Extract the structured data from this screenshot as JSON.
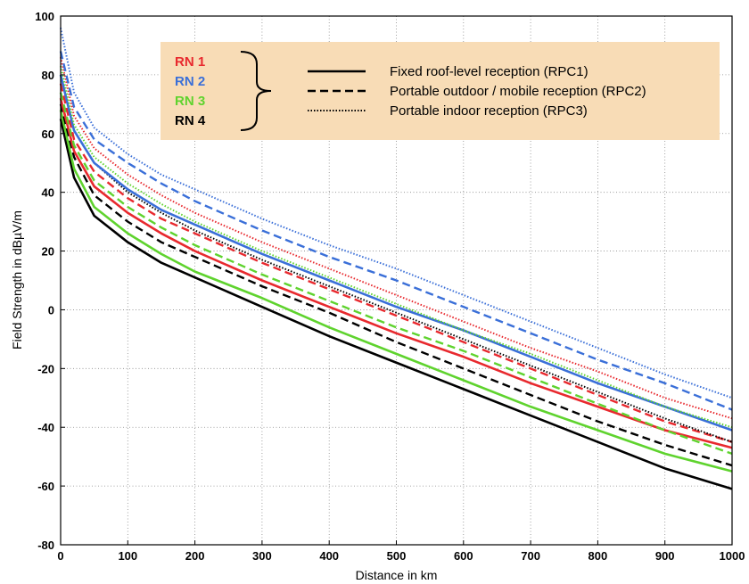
{
  "chart_data": {
    "type": "line",
    "xlabel": "Distance in km",
    "ylabel": "Field Strength in dBµV/m",
    "xlim": [
      0,
      1000
    ],
    "ylim": [
      -80,
      100
    ],
    "xticks": [
      0,
      100,
      200,
      300,
      400,
      500,
      600,
      700,
      800,
      900,
      1000
    ],
    "yticks": [
      -80,
      -60,
      -40,
      -20,
      0,
      20,
      40,
      60,
      80,
      100
    ],
    "grid": true,
    "legend": {
      "placement": "top-center",
      "background": "#f8dcb6",
      "networks": [
        {
          "label": "RN 1",
          "color": "#e8292e"
        },
        {
          "label": "RN 2",
          "color": "#3a6fd8"
        },
        {
          "label": "RN 3",
          "color": "#5fd32e"
        },
        {
          "label": "RN 4",
          "color": "#000000"
        }
      ],
      "styles": [
        {
          "label": "Fixed roof-level reception (RPC1)",
          "dash": "solid"
        },
        {
          "label": "Portable outdoor / mobile reception (RPC2)",
          "dash": "dashed"
        },
        {
          "label": "Portable indoor reception (RPC3)",
          "dash": "dotted"
        }
      ]
    },
    "x": [
      0,
      20,
      50,
      100,
      150,
      200,
      300,
      400,
      500,
      600,
      700,
      800,
      900,
      1000
    ],
    "series": [
      {
        "name": "RN 4 RPC1",
        "network": "RN 4",
        "style": "solid",
        "values": [
          65,
          45,
          32,
          23,
          16,
          11,
          1,
          -9,
          -18,
          -27,
          -36,
          -45,
          -54,
          -61
        ]
      },
      {
        "name": "RN 3 RPC1",
        "network": "RN 3",
        "style": "solid",
        "values": [
          68,
          48,
          35,
          26,
          19,
          13,
          4,
          -6,
          -15,
          -24,
          -33,
          -41,
          -49,
          -55
        ]
      },
      {
        "name": "RN 4 RPC2",
        "network": "RN 4",
        "style": "dashed",
        "values": [
          70,
          52,
          39,
          30,
          23,
          18,
          8,
          -1,
          -11,
          -20,
          -29,
          -38,
          -46,
          -53
        ]
      },
      {
        "name": "RN 1 RPC1",
        "network": "RN 1",
        "style": "solid",
        "values": [
          72,
          54,
          42,
          33,
          26,
          20,
          10,
          1,
          -8,
          -16,
          -25,
          -33,
          -41,
          -47
        ]
      },
      {
        "name": "RN 3 RPC2",
        "network": "RN 3",
        "style": "dashed",
        "values": [
          74,
          56,
          44,
          35,
          28,
          22,
          12,
          3,
          -6,
          -14,
          -23,
          -32,
          -41,
          -49
        ]
      },
      {
        "name": "RN 1 RPC2",
        "network": "RN 1",
        "style": "dashed",
        "values": [
          77,
          58,
          47,
          38,
          31,
          26,
          16,
          7,
          -2,
          -11,
          -20,
          -29,
          -38,
          -45
        ]
      },
      {
        "name": "RN 4 RPC3",
        "network": "RN 4",
        "style": "dotted",
        "values": [
          80,
          61,
          50,
          40,
          33,
          27,
          17,
          8,
          -1,
          -10,
          -19,
          -28,
          -37,
          -45
        ]
      },
      {
        "name": "RN 2 RPC1",
        "network": "RN 2",
        "style": "solid",
        "values": [
          80,
          61,
          50,
          41,
          34,
          29,
          19,
          10,
          1,
          -7,
          -16,
          -25,
          -33,
          -41
        ]
      },
      {
        "name": "RN 3 RPC3",
        "network": "RN 3",
        "style": "dotted",
        "values": [
          83,
          63,
          52,
          43,
          36,
          30,
          20,
          11,
          2,
          -7,
          -15,
          -24,
          -33,
          -40
        ]
      },
      {
        "name": "RN 1 RPC3",
        "network": "RN 1",
        "style": "dotted",
        "values": [
          86,
          66,
          55,
          46,
          39,
          33,
          23,
          14,
          5,
          -4,
          -13,
          -21,
          -30,
          -37
        ]
      },
      {
        "name": "RN 2 RPC2",
        "network": "RN 2",
        "style": "dashed",
        "values": [
          88,
          69,
          58,
          50,
          43,
          37,
          27,
          18,
          10,
          1,
          -8,
          -17,
          -25,
          -34
        ]
      },
      {
        "name": "RN 2 RPC3",
        "network": "RN 2",
        "style": "dotted",
        "values": [
          96,
          74,
          62,
          53,
          46,
          41,
          31,
          22,
          14,
          5,
          -4,
          -13,
          -22,
          -30
        ]
      }
    ]
  }
}
